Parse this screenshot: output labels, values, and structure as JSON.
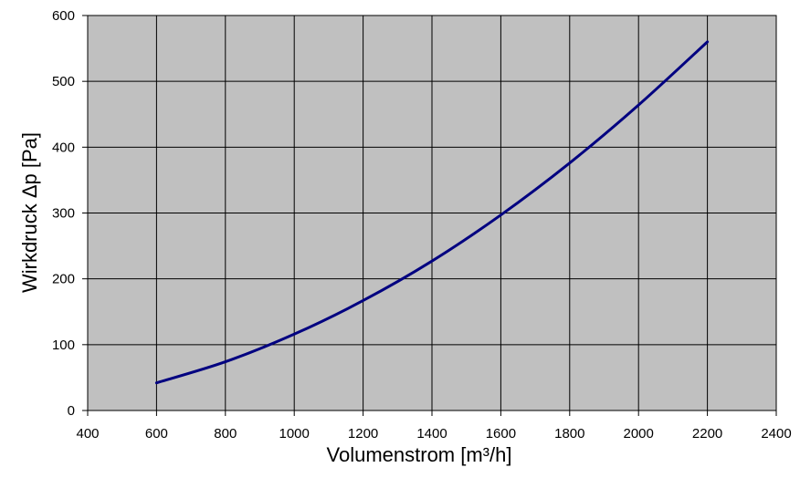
{
  "chart_data": {
    "type": "line",
    "title": "",
    "xlabel": "Volumenstrom [m³/h]",
    "ylabel": "Wirkdruck Δp [Pa]",
    "xlim": [
      400,
      2400
    ],
    "ylim": [
      0,
      600
    ],
    "x_ticks": [
      400,
      600,
      800,
      1000,
      1200,
      1400,
      1600,
      1800,
      2000,
      2200,
      2400
    ],
    "y_ticks": [
      0,
      100,
      200,
      300,
      400,
      500,
      600
    ],
    "grid": true,
    "legend": "none",
    "colors": {
      "plot_background": "#c0c0c0",
      "grid": "#000000",
      "series_line": "#000080"
    },
    "series": [
      {
        "x": [
          600,
          800,
          1000,
          1200,
          1400,
          1600,
          1800,
          2000,
          2200
        ],
        "y": [
          42,
          74,
          116,
          167,
          227,
          297,
          376,
          464,
          560
        ]
      }
    ]
  }
}
